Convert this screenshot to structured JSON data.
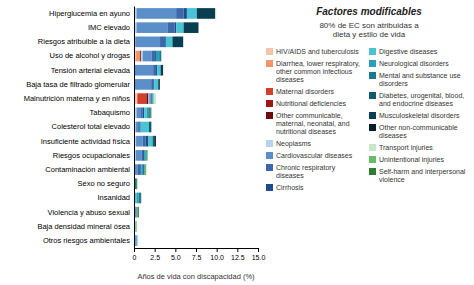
{
  "chart_data": {
    "type": "bar",
    "orientation": "horizontal",
    "stacked": true,
    "title": "Factores modificables",
    "subtitle": "80% de EC son atribuidas a\ndieta y estilo de vida",
    "xlabel": "Años de vida con discapacidad (%)",
    "categories": [
      "Hiperglucemia en ayuno",
      "IMC elevado",
      "Riesgos atribuible a la dieta",
      "Uso de alcohol y drogas",
      "Tensión arterial elevada",
      "Baja tasa de filtrado glomerular",
      "Malnutrición materna y en niños",
      "Tabaquismo",
      "Colesterol total elevado",
      "Insuficiente actividad física",
      "Riesgos ocupacionales",
      "Contaminación ambiental",
      "Sexo no seguro",
      "Insanidad",
      "Violencia y abuso sexual",
      "Baja densidad mineral ósea",
      "Otros riesgos ambientales"
    ],
    "series": [
      {
        "name": "HIV/AIDS and tuberculosis",
        "color": "#f5c4aa",
        "values": [
          0.0,
          0.0,
          0.0,
          0.25,
          0.0,
          0.0,
          0.4,
          0.0,
          0.0,
          0.0,
          0.0,
          0.0,
          0.0,
          0.0,
          0.0,
          0.0,
          0.0
        ]
      },
      {
        "name": "Diarrhea, lower respiratory, other common infectious diseases",
        "color": "#f0956e",
        "values": [
          0.0,
          0.0,
          0.0,
          0.5,
          0.0,
          0.0,
          0.0,
          0.0,
          0.0,
          0.0,
          0.0,
          0.0,
          0.0,
          0.0,
          0.0,
          0.0,
          0.0
        ]
      },
      {
        "name": "Maternal disorders",
        "color": "#d43f2a",
        "values": [
          0.0,
          0.0,
          0.0,
          0.0,
          0.0,
          0.0,
          1.1,
          0.0,
          0.0,
          0.0,
          0.0,
          0.0,
          0.0,
          0.0,
          0.0,
          0.0,
          0.0
        ]
      },
      {
        "name": "Nutritional deficiencies",
        "color": "#a01515",
        "values": [
          0.0,
          0.0,
          0.0,
          0.0,
          0.0,
          0.0,
          0.0,
          0.0,
          0.0,
          0.0,
          0.0,
          0.0,
          0.0,
          0.0,
          0.0,
          0.0,
          0.0
        ]
      },
      {
        "name": "Other communicable, maternal, neonatal, and nutritional diseases",
        "color": "#6b0d0d",
        "values": [
          0.0,
          0.0,
          0.0,
          0.12,
          0.0,
          0.0,
          0.25,
          0.0,
          0.0,
          0.0,
          0.0,
          0.0,
          0.07,
          0.0,
          0.0,
          0.0,
          0.0
        ]
      },
      {
        "name": "Neoplasms",
        "color": "#b8d4ec",
        "values": [
          0.3,
          0.3,
          0.15,
          0.18,
          0.12,
          0.08,
          0.1,
          0.3,
          0.2,
          0.25,
          0.2,
          0.12,
          0.0,
          0.0,
          0.0,
          0.0,
          0.07
        ]
      },
      {
        "name": "Cardiovascular diseases",
        "color": "#5b8fc9",
        "values": [
          4.8,
          3.8,
          3.0,
          1.1,
          2.2,
          2.0,
          0.15,
          0.55,
          0.3,
          0.8,
          0.7,
          0.35,
          0.0,
          0.0,
          0.35,
          0.0,
          0.12
        ]
      },
      {
        "name": "Chronic respiratory diseases",
        "color": "#3a68a8",
        "values": [
          0.9,
          0.8,
          0.6,
          0.3,
          0.35,
          0.25,
          0.15,
          0.2,
          0.15,
          0.35,
          0.2,
          0.3,
          0.0,
          0.0,
          0.0,
          0.0,
          0.06
        ]
      },
      {
        "name": "Cirrhosis",
        "color": "#1e4b8c",
        "values": [
          0.4,
          0.2,
          0.1,
          0.2,
          0.15,
          0.1,
          0.1,
          0.2,
          0.15,
          0.35,
          0.12,
          0.12,
          0.0,
          0.0,
          0.0,
          0.0,
          0.06
        ]
      },
      {
        "name": "Digestive diseases",
        "color": "#48c4d4",
        "values": [
          1.2,
          0.9,
          0.8,
          0.0,
          0.4,
          0.5,
          0.15,
          0.3,
          1.0,
          0.5,
          0.0,
          0.0,
          0.0,
          0.35,
          0.0,
          0.2,
          0.12
        ]
      },
      {
        "name": "Neurological disorders",
        "color": "#2a9db8",
        "values": [
          0.0,
          0.0,
          0.0,
          0.4,
          0.0,
          0.0,
          0.0,
          0.3,
          0.0,
          0.0,
          0.2,
          0.2,
          0.0,
          0.2,
          0.0,
          0.0,
          0.0
        ]
      },
      {
        "name": "Mental and substance use disorders",
        "color": "#1a7a8e",
        "values": [
          0.0,
          0.0,
          0.0,
          0.25,
          0.0,
          0.0,
          0.0,
          0.0,
          0.0,
          0.0,
          0.12,
          0.2,
          0.2,
          0.2,
          0.0,
          0.0,
          0.0
        ]
      },
      {
        "name": "Diabetes, urogenital, blood, and endocrine diseases",
        "color": "#0e5c6e",
        "values": [
          0.0,
          0.0,
          0.0,
          0.0,
          0.0,
          0.0,
          0.0,
          0.15,
          0.3,
          0.2,
          0.0,
          0.0,
          0.0,
          0.12,
          0.0,
          0.0,
          0.0
        ]
      },
      {
        "name": "Musculoskeletal disorders",
        "color": "#083d52",
        "values": [
          2.2,
          1.8,
          1.3,
          0.0,
          0.3,
          0.2,
          0.0,
          0.0,
          0.0,
          0.0,
          0.0,
          0.0,
          0.0,
          0.0,
          0.0,
          0.0,
          0.0
        ]
      },
      {
        "name": "Other non-communicable diseases",
        "color": "#041e2e",
        "values": [
          0.0,
          0.0,
          0.0,
          0.0,
          0.0,
          0.0,
          0.0,
          0.0,
          0.0,
          0.2,
          0.0,
          0.0,
          0.0,
          0.0,
          0.0,
          0.0,
          0.0
        ]
      },
      {
        "name": "Transport injuries",
        "color": "#c8e6c9",
        "values": [
          0.15,
          0.0,
          0.0,
          0.0,
          0.0,
          0.0,
          0.25,
          0.0,
          0.0,
          0.0,
          0.0,
          0.0,
          0.0,
          0.0,
          0.0,
          0.0,
          0.0
        ]
      },
      {
        "name": "Unintentional injuries",
        "color": "#66bb6a",
        "values": [
          0.0,
          0.0,
          0.0,
          0.0,
          0.0,
          0.0,
          0.0,
          0.0,
          0.0,
          0.0,
          0.12,
          0.12,
          0.0,
          0.0,
          0.12,
          0.12,
          0.0
        ]
      },
      {
        "name": "Self-harm and interpersonal violence",
        "color": "#2e7d32",
        "values": [
          0.0,
          0.0,
          0.0,
          0.0,
          0.0,
          0.0,
          0.0,
          0.1,
          0.0,
          0.0,
          0.0,
          0.06,
          0.12,
          0.0,
          0.12,
          0.0,
          0.0
        ]
      }
    ],
    "xlim": [
      0,
      15.0
    ],
    "xticks": [
      0,
      2.5,
      {
        "value": 5.0,
        "label": "5.0"
      },
      {
        "value": 7.5,
        "label": "7.5"
      },
      {
        "value": 10.0,
        "label": "10.0"
      },
      {
        "value": 12.5,
        "label": "12.5"
      },
      {
        "value": 15.0,
        "label": "15.0"
      }
    ]
  }
}
